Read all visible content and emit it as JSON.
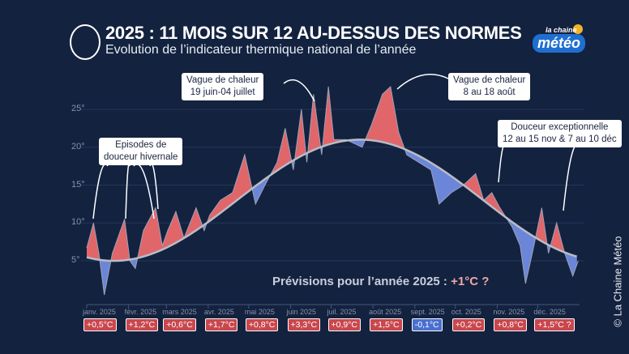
{
  "header": {
    "title": "2025 : 11 MOIS SUR 12 AU-DESSUS DES NORMES",
    "subtitle": "Evolution de l’indicateur thermique national de l’année",
    "brand_small": "la chaine",
    "brand_big": "météo"
  },
  "credit": "© La Chaine Météo",
  "forecast": {
    "label": "Prévisions pour l’année 2025 :",
    "value": "+1°C ?"
  },
  "annotations": [
    {
      "text": "Vague de chaleur\n19 juin-04 juillet"
    },
    {
      "text": "Vague de chaleur\n8 au 18 août"
    },
    {
      "text": "Episodes de\ndouceur hivernale"
    },
    {
      "text": "Douceur exceptionnelle\n12 au 15 nov  &  7 au 10 déc"
    }
  ],
  "colors": {
    "above": "#e0666a",
    "below": "#6b86d8",
    "normal": "#b9bcc6",
    "background": "#13223f"
  },
  "chart_data": {
    "type": "area",
    "ylim": [
      0,
      29
    ],
    "yticks": [
      "5°",
      "10°",
      "15°",
      "20°",
      "25°"
    ],
    "ytick_values": [
      5,
      10,
      15,
      20,
      25
    ],
    "grid": true,
    "months": [
      {
        "label": "janv. 2025",
        "anomaly": "+0,5°C",
        "sign": "pos"
      },
      {
        "label": "févr. 2025",
        "anomaly": "+1,2°C",
        "sign": "pos"
      },
      {
        "label": "mars 2025",
        "anomaly": "+0,6°C",
        "sign": "pos"
      },
      {
        "label": "avr. 2025",
        "anomaly": "+1,7°C",
        "sign": "pos"
      },
      {
        "label": "mai 2025",
        "anomaly": "+0,8°C",
        "sign": "pos"
      },
      {
        "label": "juin 2025",
        "anomaly": "+3,3°C",
        "sign": "pos"
      },
      {
        "label": "juil. 2025",
        "anomaly": "+0,9°C",
        "sign": "pos"
      },
      {
        "label": "août 2025",
        "anomaly": "+1,5°C",
        "sign": "pos"
      },
      {
        "label": "sept. 2025",
        "anomaly": "-0,1°C",
        "sign": "neg"
      },
      {
        "label": "oct. 2025",
        "anomaly": "+0,2°C",
        "sign": "pos"
      },
      {
        "label": "nov. 2025",
        "anomaly": "+0,8°C",
        "sign": "pos"
      },
      {
        "label": "déc. 2025",
        "anomaly": "+1,5°C ?",
        "sign": "pos"
      }
    ],
    "observed": [
      [
        "2025-01-01",
        6.7
      ],
      [
        "2025-01-06",
        10
      ],
      [
        "2025-01-10",
        6
      ],
      [
        "2025-01-14",
        0.5
      ],
      [
        "2025-01-20",
        6
      ],
      [
        "2025-01-29",
        10.5
      ],
      [
        "2025-02-02",
        5
      ],
      [
        "2025-02-06",
        4
      ],
      [
        "2025-02-12",
        9
      ],
      [
        "2025-02-21",
        12
      ],
      [
        "2025-02-26",
        7
      ],
      [
        "2025-03-02",
        9
      ],
      [
        "2025-03-08",
        11.5
      ],
      [
        "2025-03-14",
        8
      ],
      [
        "2025-03-23",
        12
      ],
      [
        "2025-03-29",
        9
      ],
      [
        "2025-04-02",
        11
      ],
      [
        "2025-04-10",
        13
      ],
      [
        "2025-04-19",
        14
      ],
      [
        "2025-04-28",
        19
      ],
      [
        "2025-05-06",
        12.5
      ],
      [
        "2025-05-13",
        15
      ],
      [
        "2025-05-22",
        18
      ],
      [
        "2025-05-28",
        22.5
      ],
      [
        "2025-06-03",
        17
      ],
      [
        "2025-06-09",
        25
      ],
      [
        "2025-06-13",
        18
      ],
      [
        "2025-06-18",
        27
      ],
      [
        "2025-06-24",
        19
      ],
      [
        "2025-06-29",
        28
      ],
      [
        "2025-07-03",
        21
      ],
      [
        "2025-07-12",
        21
      ],
      [
        "2025-07-24",
        20
      ],
      [
        "2025-07-31",
        23
      ],
      [
        "2025-08-08",
        27
      ],
      [
        "2025-08-14",
        28
      ],
      [
        "2025-08-20",
        22
      ],
      [
        "2025-08-26",
        19
      ],
      [
        "2025-09-04",
        18
      ],
      [
        "2025-09-13",
        17
      ],
      [
        "2025-09-19",
        12.5
      ],
      [
        "2025-09-28",
        14
      ],
      [
        "2025-10-07",
        15
      ],
      [
        "2025-10-16",
        16.5
      ],
      [
        "2025-10-22",
        13
      ],
      [
        "2025-10-28",
        14
      ],
      [
        "2025-11-03",
        12
      ],
      [
        "2025-11-12",
        9.5
      ],
      [
        "2025-11-18",
        7
      ],
      [
        "2025-11-22",
        2
      ],
      [
        "2025-11-27",
        6
      ],
      [
        "2025-12-04",
        12
      ],
      [
        "2025-12-09",
        6
      ],
      [
        "2025-12-15",
        10
      ],
      [
        "2025-12-21",
        6
      ],
      [
        "2025-12-27",
        3
      ],
      [
        "2025-12-31",
        5
      ]
    ]
  }
}
